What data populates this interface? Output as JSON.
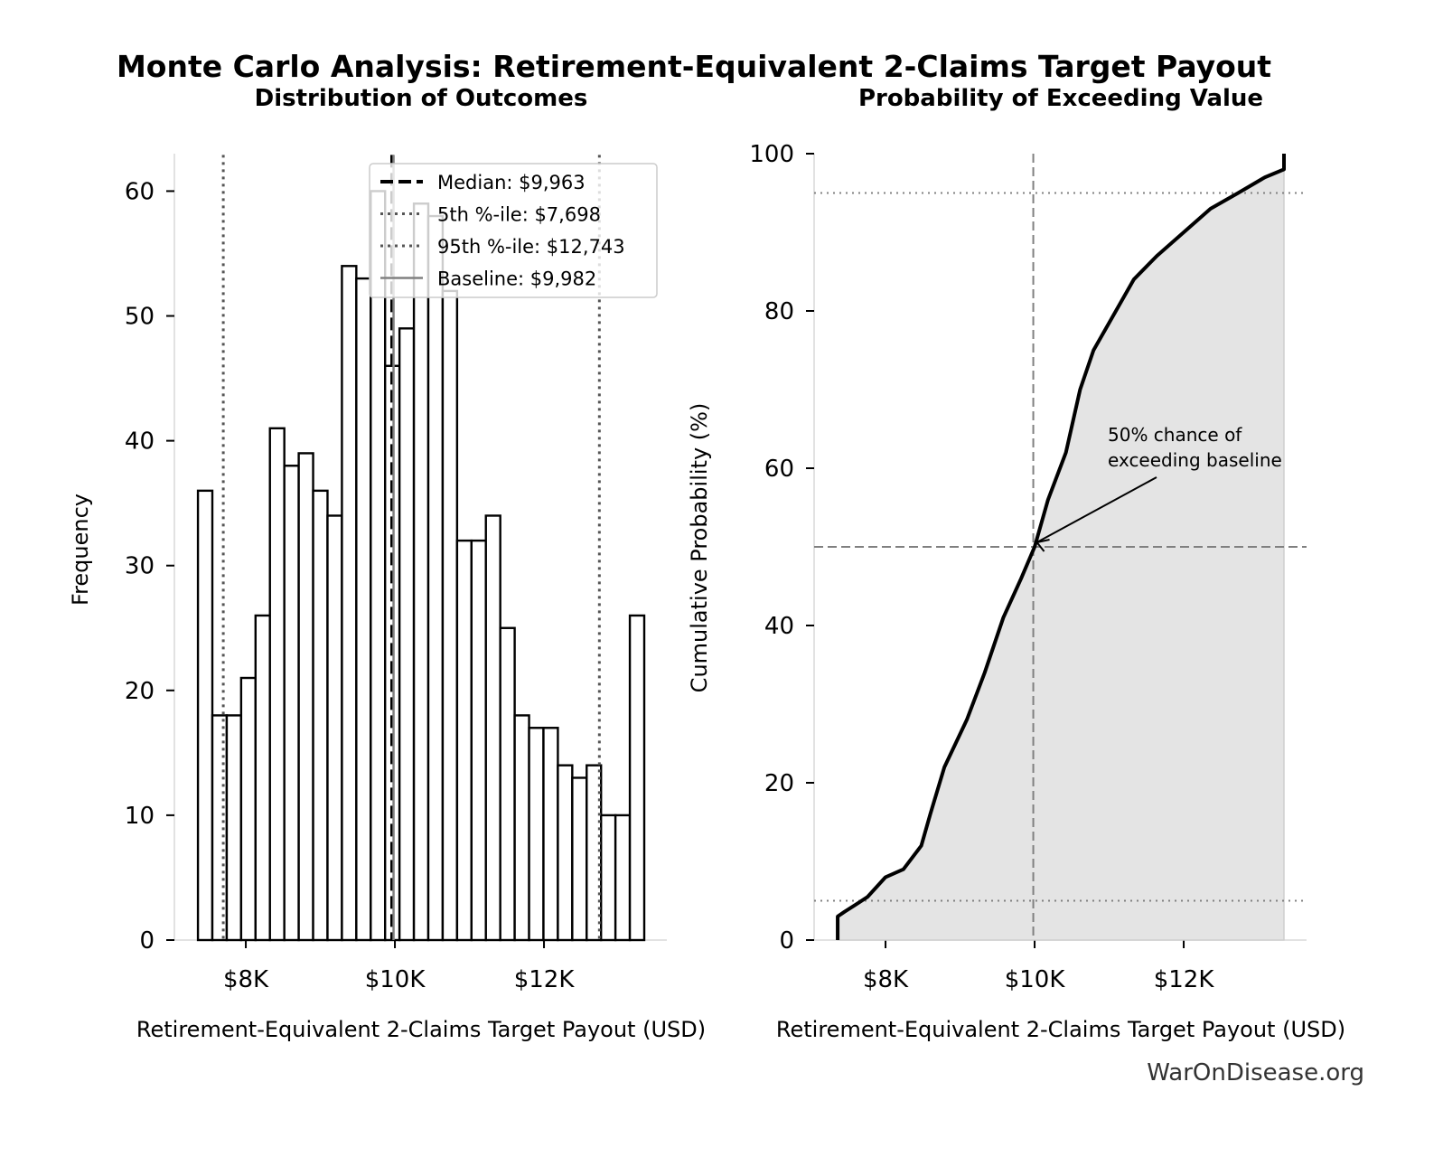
{
  "title": "Monte Carlo Analysis: Retirement-Equivalent 2-Claims Target Payout",
  "watermark": "WarOnDisease.org",
  "colors": {
    "bar_edge": "#000000",
    "bar_fill": "#ffffff",
    "ref_line": "#555555",
    "baseline": "#808080",
    "cdf_fill": "#e4e4e4",
    "spine": "#d9d9d9"
  },
  "chart_data": [
    {
      "type": "bar",
      "subtitle": "Distribution of Outcomes",
      "xlabel": "Retirement-Equivalent 2-Claims Target Payout (USD)",
      "ylabel": "Frequency",
      "xlim": [
        7042,
        13648
      ],
      "ylim": [
        0,
        63
      ],
      "xticks": [
        {
          "value": 8000,
          "label": "$8K"
        },
        {
          "value": 10000,
          "label": "$10K"
        },
        {
          "value": 12000,
          "label": "$12K"
        }
      ],
      "yticks": [
        0,
        10,
        20,
        30,
        40,
        50,
        60
      ],
      "bin_start": 7358,
      "bin_end": 13345,
      "values": [
        36,
        18,
        18,
        21,
        26,
        41,
        38,
        39,
        36,
        34,
        54,
        53,
        60,
        46,
        49,
        59,
        58,
        52,
        32,
        32,
        34,
        25,
        18,
        17,
        17,
        14,
        13,
        14,
        10,
        10,
        26
      ],
      "reference_lines": [
        {
          "name": "Median: $9,963",
          "value": 9963,
          "style": "dashed",
          "color": "#000000"
        },
        {
          "name": "5th %-ile: $7,698",
          "value": 7698,
          "style": "dotted",
          "color": "#555555"
        },
        {
          "name": "95th %-ile: $12,743",
          "value": 12743,
          "style": "dotted",
          "color": "#555555"
        },
        {
          "name": "Baseline: $9,982",
          "value": 9982,
          "style": "solid",
          "color": "#808080"
        }
      ],
      "legend": "top-right",
      "grid": false
    },
    {
      "type": "area",
      "subtitle": "Probability of Exceeding Value",
      "xlabel": "Retirement-Equivalent 2-Claims Target Payout (USD)",
      "ylabel": "Cumulative Probability (%)",
      "xlim": [
        7042,
        13648
      ],
      "ylim": [
        0,
        100
      ],
      "xticks": [
        {
          "value": 8000,
          "label": "$8K"
        },
        {
          "value": 10000,
          "label": "$10K"
        },
        {
          "value": 12000,
          "label": "$12K"
        }
      ],
      "yticks": [
        0,
        20,
        40,
        60,
        80,
        100
      ],
      "x": [
        7358,
        7358,
        7450,
        7600,
        7760,
        8000,
        8240,
        8480,
        8600,
        8790,
        9090,
        9330,
        9580,
        9820,
        10000,
        10180,
        10420,
        10610,
        10790,
        11030,
        11330,
        11640,
        12000,
        12360,
        12730,
        13090,
        13345,
        13345
      ],
      "y": [
        0,
        3,
        3.6,
        4.5,
        5.5,
        8,
        9,
        12,
        16,
        22,
        28,
        34,
        41,
        46,
        50,
        56,
        62,
        70,
        75,
        79,
        84,
        87,
        90,
        93,
        95,
        97,
        98,
        100
      ],
      "hlines": [
        {
          "value": 5,
          "style": "dotted"
        },
        {
          "value": 95,
          "style": "dotted"
        },
        {
          "value": 50,
          "style": "dashed"
        }
      ],
      "vline": {
        "value": 9982,
        "style": "dashed"
      },
      "annotation": {
        "text_lines": [
          "50% chance of",
          "exceeding baseline"
        ],
        "x": 9982,
        "y": 50
      },
      "grid": false
    }
  ]
}
